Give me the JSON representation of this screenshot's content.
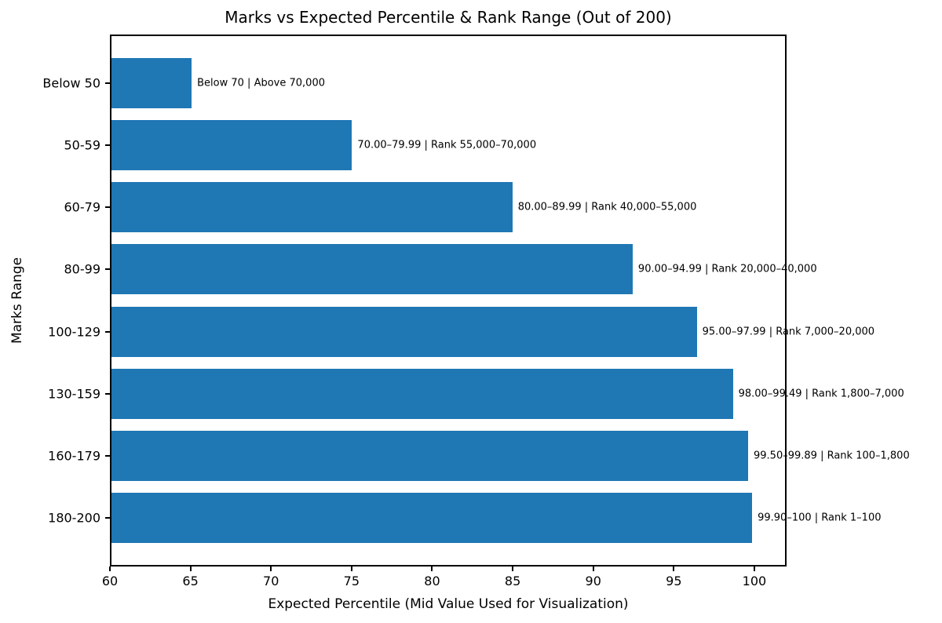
{
  "chart_data": {
    "type": "bar",
    "orientation": "horizontal",
    "title": "Marks vs Expected Percentile & Rank Range (Out of 200)",
    "xlabel": "Expected Percentile (Mid Value Used for Visualization)",
    "ylabel": "Marks Range",
    "categories": [
      "Below 50",
      "50-59",
      "60-79",
      "80-99",
      "100-129",
      "130-159",
      "160-179",
      "180-200"
    ],
    "values": [
      65,
      75,
      85,
      92.5,
      96.5,
      98.75,
      99.7,
      99.95
    ],
    "annotations": [
      "Below 70 | Above 70,000",
      "70.00–79.99 | Rank 55,000–70,000",
      "80.00–89.99 | Rank 40,000–55,000",
      "90.00–94.99 | Rank 20,000–40,000",
      "95.00–97.99 | Rank 7,000–20,000",
      "98.00–99.49 | Rank 1,800–7,000",
      "99.50–99.89 | Rank 100–1,800",
      "99.90–100 | Rank 1–100"
    ],
    "xlim": [
      60,
      102
    ],
    "xticks": [
      60,
      65,
      70,
      75,
      80,
      85,
      90,
      95,
      100
    ],
    "bar_color": "#1f77b4",
    "grid": false,
    "legend": null
  }
}
